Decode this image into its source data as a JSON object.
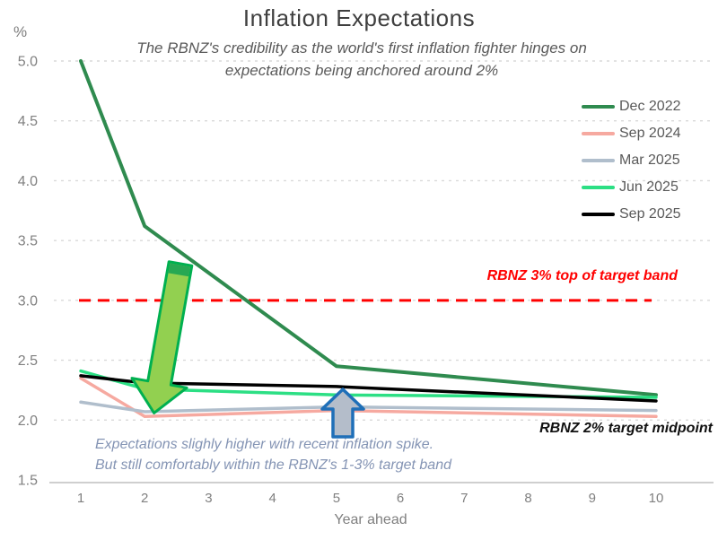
{
  "header": {
    "title": "Inflation Expectations",
    "subtitle_line1": "The RBNZ's credibility as the world's first inflation fighter hinges on",
    "subtitle_line2": "expectations being anchored around 2%",
    "y_axis_unit": "%"
  },
  "chart_data": {
    "type": "line",
    "x": [
      1,
      2,
      5,
      10
    ],
    "series": [
      {
        "name": "Dec 2022",
        "color": "#2F8B4F",
        "width": 4,
        "values": [
          5.0,
          3.62,
          2.45,
          2.21
        ]
      },
      {
        "name": "Sep 2024",
        "color": "#F6A9A0",
        "width": 3.5,
        "values": [
          2.35,
          2.03,
          2.08,
          2.03
        ]
      },
      {
        "name": "Mar 2025",
        "color": "#B0BECC",
        "width": 3.5,
        "values": [
          2.15,
          2.07,
          2.11,
          2.08
        ]
      },
      {
        "name": "Jun 2025",
        "color": "#2CDF84",
        "width": 3.5,
        "values": [
          2.41,
          2.26,
          2.21,
          2.19
        ]
      },
      {
        "name": "Sep 2025",
        "color": "#000000",
        "width": 3.5,
        "values": [
          2.37,
          2.31,
          2.28,
          2.16
        ]
      }
    ],
    "xlabel": "Year ahead",
    "xticks": [
      "1",
      "2",
      "3",
      "4",
      "5",
      "6",
      "7",
      "8",
      "9",
      "10"
    ],
    "yticks": [
      "5.0",
      "4.5",
      "4.0",
      "3.5",
      "3.0",
      "2.5",
      "2.0",
      "1.5"
    ],
    "ylim": [
      1.5,
      5.0
    ],
    "grid": "horizontal-dashed",
    "gridline_color": "#D9D9D9",
    "axisline_color": "#BFBFBF",
    "legend_position": "upper-right",
    "reference_line": {
      "value": 3.0,
      "label": "RBNZ 3% top of target band",
      "color": "#FF0000",
      "style": "dashed"
    },
    "annotations": {
      "midpoint_label": "RBNZ 2% target midpoint",
      "note_line1": "Expectations slighly higher with recent inflation spike.",
      "note_line2": "But still comfortably within the RBNZ's 1-3% target band",
      "note_color": "#8494B4",
      "down_arrow_fill": "#92D050",
      "down_arrow_border": "#00B050",
      "down_arrow_cap": "#27A853",
      "up_arrow_fill": "#B4BDCA",
      "up_arrow_border": "#1F6FB8"
    }
  }
}
